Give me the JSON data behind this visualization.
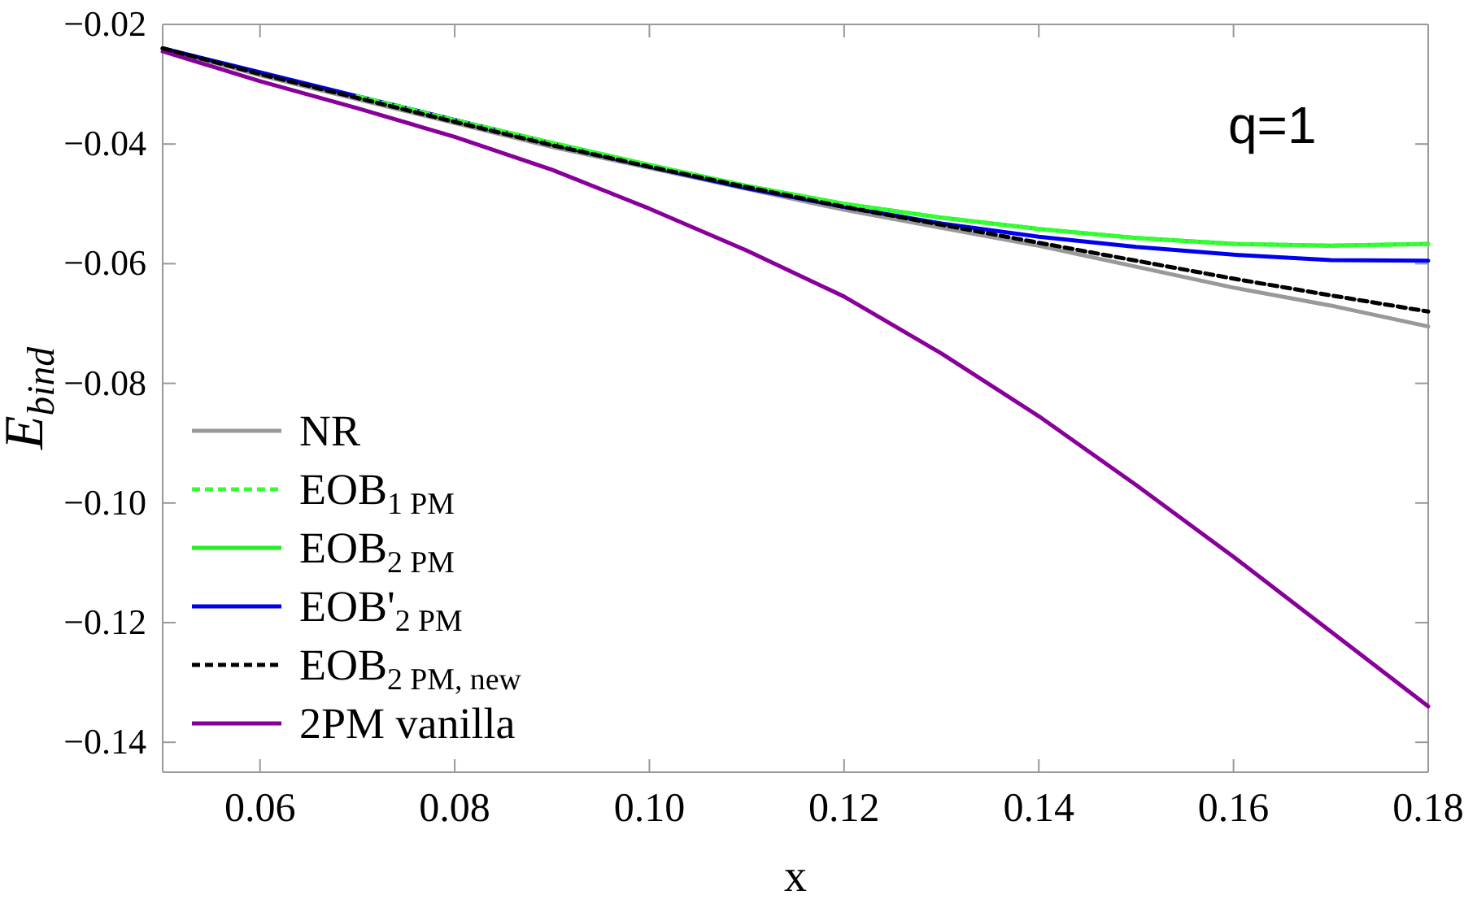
{
  "chart_data": {
    "type": "line",
    "xlabel": "x",
    "ylabel": "E$_{bind}$",
    "annotations": [
      "q=1"
    ],
    "x": [
      0.05,
      0.06,
      0.07,
      0.08,
      0.09,
      0.1,
      0.11,
      0.12,
      0.13,
      0.14,
      0.15,
      0.16,
      0.17,
      0.18
    ],
    "xlim": [
      0.05,
      0.18
    ],
    "ylim": [
      -0.145,
      -0.02
    ],
    "xticks": [
      {
        "value": 0.06,
        "label": "0.06"
      },
      {
        "value": 0.08,
        "label": "0.08"
      },
      {
        "value": 0.1,
        "label": "0.10"
      },
      {
        "value": 0.12,
        "label": "0.12"
      },
      {
        "value": 0.14,
        "label": "0.14"
      },
      {
        "value": 0.16,
        "label": "0.16"
      },
      {
        "value": 0.18,
        "label": "0.18"
      }
    ],
    "yticks": [
      {
        "value": -0.14,
        "label": "−0.14"
      },
      {
        "value": -0.12,
        "label": "−0.12"
      },
      {
        "value": -0.1,
        "label": "−0.10"
      },
      {
        "value": -0.08,
        "label": "−0.08"
      },
      {
        "value": -0.06,
        "label": "−0.06"
      },
      {
        "value": -0.04,
        "label": "−0.04"
      },
      {
        "value": -0.02,
        "label": "−0.02"
      }
    ],
    "grid": false,
    "legend": "bottom left",
    "marker": "none",
    "series": [
      {
        "name": "NR",
        "color": "#999999",
        "line_style": "solid",
        "values": [
          -0.024,
          -0.0285,
          -0.0325,
          -0.0365,
          -0.0405,
          -0.044,
          -0.0475,
          -0.051,
          -0.054,
          -0.057,
          -0.0605,
          -0.064,
          -0.067,
          -0.0705
        ]
      },
      {
        "name": "EOB$_{1 PM}$",
        "color": "#33ff33",
        "line_style": "dashed",
        "values": [
          null,
          null,
          -0.032,
          -0.036,
          -0.0398,
          -0.0435,
          -0.047,
          -0.05,
          -0.0523,
          -0.0542,
          -0.0557,
          -0.0567,
          -0.057,
          -0.0567
        ]
      },
      {
        "name": "EOB$_{2 PM}$",
        "color": "#22ee22",
        "line_style": "solid",
        "values": [
          null,
          null,
          -0.032,
          -0.036,
          -0.0398,
          -0.0435,
          -0.047,
          -0.05,
          -0.0523,
          -0.0542,
          -0.0557,
          -0.0567,
          -0.057,
          -0.0567
        ]
      },
      {
        "name": "EOB'$_{2 PM}$",
        "color": "#0000ee",
        "line_style": "solid",
        "values": [
          -0.024,
          -0.028,
          -0.032,
          -0.036,
          -0.04,
          -0.0438,
          -0.0474,
          -0.0505,
          -0.0533,
          -0.0555,
          -0.0572,
          -0.0585,
          -0.0594,
          -0.0595
        ]
      },
      {
        "name": "EOB$_{2 PM, new}$",
        "color": "#000000",
        "line_style": "dashed",
        "values": [
          -0.024,
          -0.0283,
          -0.0323,
          -0.0363,
          -0.0402,
          -0.0438,
          -0.0472,
          -0.0505,
          -0.0535,
          -0.0565,
          -0.0595,
          -0.0625,
          -0.0653,
          -0.068
        ]
      },
      {
        "name": "2PM vanilla",
        "color": "#880099",
        "line_style": "solid",
        "values": [
          -0.0245,
          -0.0295,
          -0.034,
          -0.0388,
          -0.0443,
          -0.0508,
          -0.0578,
          -0.0655,
          -0.075,
          -0.0855,
          -0.097,
          -0.109,
          -0.1215,
          -0.134
        ]
      }
    ]
  }
}
